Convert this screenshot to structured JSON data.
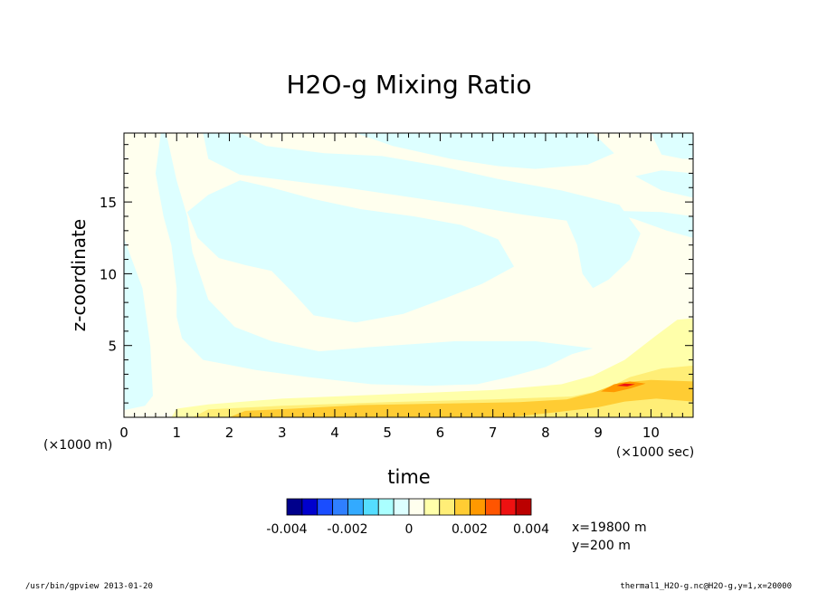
{
  "chart_data": {
    "type": "heatmap",
    "title": "H2O-g Mixing Ratio",
    "xlabel": "time",
    "ylabel": "z-coordinate",
    "x_unit_label": "(×1000 sec)",
    "y_unit_label": "(×1000 m)",
    "xlim": [
      0,
      10.8
    ],
    "ylim": [
      0,
      19.8
    ],
    "x_ticks": [
      0,
      1,
      2,
      3,
      4,
      5,
      6,
      7,
      8,
      9,
      10
    ],
    "y_ticks": [
      5,
      10,
      15
    ],
    "colorbar": {
      "colors": [
        "#00008b",
        "#0000cd",
        "#1a4dff",
        "#2f7fff",
        "#33aaff",
        "#55ddff",
        "#aaffff",
        "#ddffff",
        "#ffffee",
        "#ffffaa",
        "#ffee77",
        "#ffcc33",
        "#ff9900",
        "#ff5500",
        "#ee1111",
        "#bb0000"
      ],
      "tick_labels": [
        "-0.004",
        "-0.002",
        "0",
        "0.002",
        "0.004"
      ]
    },
    "regions_note": "",
    "cyan_bands": [
      [
        [
          0.0,
          19.8
        ],
        [
          0.7,
          19.8
        ],
        [
          0.6,
          17.0
        ],
        [
          0.75,
          14.0
        ],
        [
          0.9,
          12.0
        ],
        [
          1.0,
          9.0
        ],
        [
          1.0,
          7.0
        ],
        [
          1.1,
          5.5
        ],
        [
          1.5,
          4.0
        ],
        [
          2.5,
          3.3
        ],
        [
          3.5,
          2.8
        ],
        [
          4.7,
          2.3
        ],
        [
          5.8,
          2.2
        ],
        [
          6.7,
          2.3
        ],
        [
          7.3,
          2.8
        ],
        [
          8.0,
          3.5
        ],
        [
          8.5,
          4.4
        ],
        [
          8.9,
          4.8
        ],
        [
          7.8,
          5.3
        ],
        [
          6.3,
          5.3
        ],
        [
          4.7,
          4.9
        ],
        [
          3.7,
          4.6
        ],
        [
          2.8,
          5.3
        ],
        [
          2.1,
          6.3
        ],
        [
          1.6,
          8.2
        ],
        [
          1.3,
          11.5
        ],
        [
          1.2,
          14.0
        ],
        [
          1.0,
          16.5
        ],
        [
          0.8,
          19.8
        ],
        [
          0.0,
          19.8
        ],
        [
          0.0,
          12.5
        ],
        [
          0.15,
          11.0
        ],
        [
          0.35,
          9.0
        ],
        [
          0.5,
          5.0
        ],
        [
          0.55,
          1.5
        ],
        [
          0.4,
          0.8
        ],
        [
          0.0,
          0.5
        ]
      ],
      [
        [
          1.2,
          14.3
        ],
        [
          1.6,
          15.5
        ],
        [
          2.2,
          16.5
        ],
        [
          2.8,
          16.0
        ],
        [
          3.6,
          15.2
        ],
        [
          4.5,
          14.5
        ],
        [
          5.5,
          14.0
        ],
        [
          6.4,
          13.4
        ],
        [
          7.1,
          12.4
        ],
        [
          7.4,
          10.5
        ],
        [
          6.8,
          9.3
        ],
        [
          6.1,
          8.3
        ],
        [
          5.3,
          7.2
        ],
        [
          4.4,
          6.6
        ],
        [
          3.6,
          7.1
        ],
        [
          3.2,
          8.7
        ],
        [
          2.8,
          10.2
        ],
        [
          2.3,
          10.6
        ],
        [
          1.8,
          11.1
        ],
        [
          1.4,
          12.5
        ]
      ],
      [
        [
          1.5,
          19.8
        ],
        [
          1.6,
          18.0
        ],
        [
          2.2,
          16.9
        ],
        [
          3.1,
          16.5
        ],
        [
          4.2,
          16.0
        ],
        [
          5.3,
          15.4
        ],
        [
          6.6,
          14.7
        ],
        [
          7.6,
          14.1
        ],
        [
          8.4,
          13.7
        ],
        [
          8.6,
          12.0
        ],
        [
          8.7,
          10.0
        ],
        [
          8.9,
          9.0
        ],
        [
          9.2,
          9.6
        ],
        [
          9.6,
          11.0
        ],
        [
          9.8,
          12.8
        ],
        [
          9.4,
          14.8
        ],
        [
          8.3,
          15.8
        ],
        [
          7.1,
          16.6
        ],
        [
          6.0,
          17.5
        ],
        [
          4.9,
          18.2
        ],
        [
          3.8,
          18.4
        ],
        [
          2.7,
          18.9
        ],
        [
          2.2,
          19.8
        ]
      ],
      [
        [
          4.4,
          19.8
        ],
        [
          5.1,
          18.9
        ],
        [
          6.2,
          18.0
        ],
        [
          7.1,
          17.5
        ],
        [
          7.8,
          17.3
        ],
        [
          8.8,
          17.6
        ],
        [
          9.3,
          18.4
        ],
        [
          8.9,
          19.8
        ]
      ],
      [
        [
          10.0,
          19.8
        ],
        [
          10.2,
          18.3
        ],
        [
          10.6,
          18.0
        ],
        [
          10.8,
          18.0
        ],
        [
          10.8,
          19.8
        ]
      ],
      [
        [
          9.7,
          16.8
        ],
        [
          10.2,
          15.8
        ],
        [
          10.8,
          15.3
        ],
        [
          10.8,
          17.0
        ],
        [
          10.2,
          17.2
        ]
      ],
      [
        [
          9.1,
          14.4
        ],
        [
          9.7,
          13.8
        ],
        [
          10.3,
          13.0
        ],
        [
          10.8,
          12.5
        ],
        [
          10.8,
          14.0
        ],
        [
          10.2,
          14.3
        ]
      ]
    ],
    "warm_bands": [
      {
        "color": "#ffffaa",
        "points": [
          [
            0.9,
            0.0
          ],
          [
            1.0,
            0.6
          ],
          [
            1.6,
            0.9
          ],
          [
            3.0,
            1.3
          ],
          [
            5.0,
            1.6
          ],
          [
            7.0,
            1.9
          ],
          [
            8.3,
            2.3
          ],
          [
            8.9,
            2.9
          ],
          [
            9.5,
            4.0
          ],
          [
            10.1,
            5.7
          ],
          [
            10.5,
            6.8
          ],
          [
            10.8,
            6.9
          ],
          [
            10.8,
            0.0
          ]
        ]
      },
      {
        "color": "#ffee77",
        "points": [
          [
            1.3,
            0.0
          ],
          [
            1.6,
            0.55
          ],
          [
            3.0,
            0.8
          ],
          [
            5.0,
            1.05
          ],
          [
            7.0,
            1.25
          ],
          [
            8.5,
            1.45
          ],
          [
            9.1,
            1.9
          ],
          [
            9.6,
            2.8
          ],
          [
            10.2,
            3.4
          ],
          [
            10.8,
            3.6
          ],
          [
            10.8,
            0.0
          ]
        ]
      },
      {
        "color": "#ffcc33",
        "points": [
          [
            2.0,
            0.0
          ],
          [
            2.3,
            0.45
          ],
          [
            3.2,
            0.6
          ],
          [
            4.5,
            0.85
          ],
          [
            6.0,
            0.95
          ],
          [
            7.5,
            1.05
          ],
          [
            8.4,
            1.25
          ],
          [
            8.9,
            1.7
          ],
          [
            9.4,
            2.4
          ],
          [
            10.0,
            2.6
          ],
          [
            10.8,
            2.5
          ],
          [
            10.8,
            1.1
          ],
          [
            10.1,
            1.3
          ],
          [
            9.5,
            1.1
          ],
          [
            9.0,
            0.7
          ],
          [
            8.2,
            0.35
          ],
          [
            7.3,
            0.0
          ]
        ]
      },
      {
        "color": "#ff9900",
        "points": [
          [
            9.05,
            1.8
          ],
          [
            9.3,
            2.3
          ],
          [
            9.6,
            2.5
          ],
          [
            9.9,
            2.35
          ],
          [
            9.6,
            2.0
          ],
          [
            9.3,
            1.75
          ]
        ]
      },
      {
        "color": "#ee1111",
        "points": [
          [
            9.35,
            2.2
          ],
          [
            9.5,
            2.35
          ],
          [
            9.7,
            2.3
          ],
          [
            9.55,
            2.15
          ]
        ]
      }
    ]
  },
  "footer": {
    "left": "/usr/bin/gpview  2013-01-20",
    "right": "thermal1_H2O-g.nc@H2O-g,y=1,x=20000"
  },
  "position_info": [
    "x=19800 m",
    "y=200 m"
  ]
}
